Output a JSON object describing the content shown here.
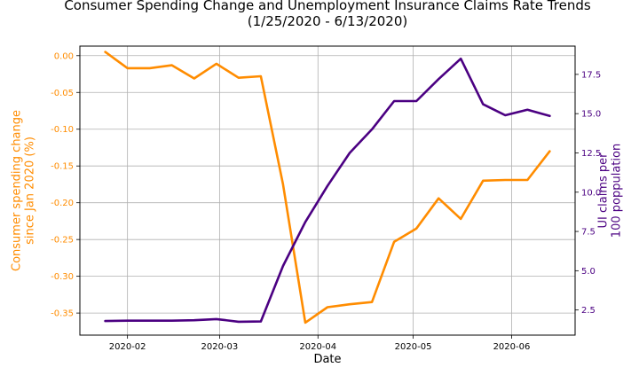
{
  "chart_data": {
    "type": "line",
    "title": "Consumer Spending Change and Unemployment Insurance Claims Rate Trends",
    "subtitle": "(1/25/2020 - 6/13/2020)",
    "xlabel": "Date",
    "ylabel_left": "Consumer spending change\nsince Jan 2020 (%)",
    "ylabel_right": "UI claims per\n100 poppulation",
    "grid": true,
    "x_ticks": [
      "2020-02",
      "2020-03",
      "2020-04",
      "2020-05",
      "2020-06"
    ],
    "y_left_ticks": [
      "0.00",
      "-0.05",
      "-0.10",
      "-0.15",
      "-0.20",
      "-0.25",
      "-0.30",
      "-0.35"
    ],
    "y_right_ticks": [
      "2.5",
      "5.0",
      "7.5",
      "10.0",
      "12.5",
      "15.0",
      "17.5"
    ],
    "ylim_left": [
      -0.38,
      0.013
    ],
    "ylim_right": [
      0.9,
      19.3
    ],
    "x": [
      "2020-01-25",
      "2020-02-01",
      "2020-02-08",
      "2020-02-15",
      "2020-02-22",
      "2020-02-29",
      "2020-03-07",
      "2020-03-14",
      "2020-03-21",
      "2020-03-28",
      "2020-04-04",
      "2020-04-11",
      "2020-04-18",
      "2020-04-25",
      "2020-05-02",
      "2020-05-09",
      "2020-05-16",
      "2020-05-23",
      "2020-05-30",
      "2020-06-06",
      "2020-06-13"
    ],
    "series": [
      {
        "name": "Consumer spending change",
        "axis": "left",
        "color": "#ff8c00",
        "values": [
          0.005,
          -0.017,
          -0.017,
          -0.013,
          -0.031,
          -0.011,
          -0.03,
          -0.028,
          -0.175,
          -0.363,
          -0.342,
          -0.338,
          -0.335,
          -0.253,
          -0.235,
          -0.194,
          -0.222,
          -0.17,
          -0.169,
          -0.169,
          -0.13
        ]
      },
      {
        "name": "UI claims rate",
        "axis": "right",
        "color": "#4b0082",
        "values": [
          1.8,
          1.82,
          1.82,
          1.82,
          1.85,
          1.92,
          1.75,
          1.77,
          5.3,
          8.1,
          10.4,
          12.5,
          14.0,
          15.8,
          15.8,
          17.2,
          18.5,
          15.6,
          14.9,
          15.25,
          14.85
        ]
      }
    ]
  }
}
